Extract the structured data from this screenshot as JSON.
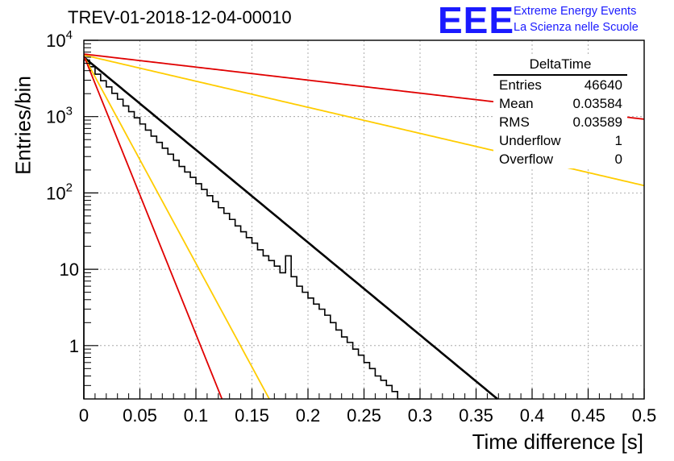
{
  "header": {
    "title": "TREV-01-2018-12-04-00010",
    "logo": "EEE",
    "logo_line1": "Extreme Energy Events",
    "logo_line2": "La Scienza nelle Scuole"
  },
  "stats_box": {
    "title": "DeltaTime",
    "rows": [
      {
        "label": "Entries",
        "value": "46640"
      },
      {
        "label": "Mean",
        "value": "0.03584"
      },
      {
        "label": "RMS",
        "value": "0.03589"
      },
      {
        "label": "Underflow",
        "value": "1"
      },
      {
        "label": "Overflow",
        "value": "0"
      }
    ]
  },
  "chart_data": {
    "type": "line",
    "title": "TREV-01-2018-12-04-00010",
    "xlabel": "Time difference [s]",
    "ylabel": "Entries/bin",
    "xlim": [
      0,
      0.5
    ],
    "ylim": [
      0.2,
      10000
    ],
    "yscale": "log",
    "grid": true,
    "x_ticks": [
      "0",
      "0.05",
      "0.1",
      "0.15",
      "0.2",
      "0.25",
      "0.3",
      "0.35",
      "0.4",
      "0.45",
      "0.5"
    ],
    "y_ticks": [
      {
        "value": 1,
        "label": "1"
      },
      {
        "value": 10,
        "label": "10"
      },
      {
        "value": 100,
        "label": "10^2"
      },
      {
        "value": 1000,
        "label": "10^3"
      },
      {
        "value": 10000,
        "label": "10^4"
      }
    ],
    "histogram": {
      "bin_width": 0.005,
      "counts": [
        5500,
        4500,
        3600,
        2950,
        2450,
        2020,
        1690,
        1380,
        1160,
        965,
        800,
        665,
        555,
        460,
        385,
        322,
        268,
        222,
        188,
        160,
        132,
        111,
        92,
        77,
        64,
        54,
        45,
        37,
        31,
        26,
        22,
        18,
        15,
        13,
        11,
        9,
        15,
        8,
        6,
        5,
        4.2,
        3.5,
        3,
        2.5,
        2,
        1.6,
        1.3,
        1.1,
        0.9,
        0.75,
        0.6,
        0.5,
        0.4,
        0.35,
        0.3,
        0.25,
        0.2,
        0.18,
        0.16,
        0.14
      ]
    },
    "series": [
      {
        "style": "solid",
        "color": "#000000",
        "y0": 6000,
        "tau": 0.0358
      },
      {
        "style": "solid",
        "color": "#ffcc00",
        "y0": 6200,
        "tau": 0.016
      },
      {
        "style": "solid",
        "color": "#ffcc00",
        "y0": 6400,
        "tau": 0.127
      },
      {
        "style": "solid",
        "color": "#e00000",
        "y0": 6300,
        "tau": 0.0119
      },
      {
        "style": "solid",
        "color": "#e00000",
        "y0": 6600,
        "tau": 0.2545
      }
    ]
  }
}
